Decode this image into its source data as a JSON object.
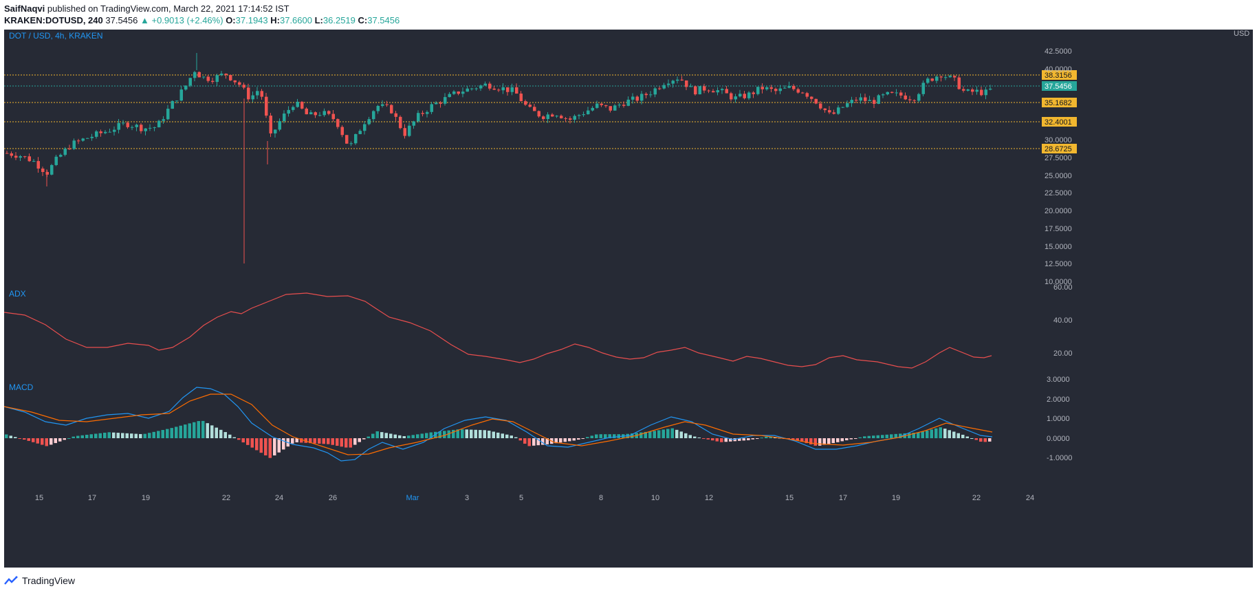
{
  "header": {
    "author": "SaifNaqvi",
    "published_text": "published on TradingView.com, March 22, 2021 17:14:52 IST",
    "symbol": "KRAKEN:DOTUSD, 240",
    "last": "37.5456",
    "change": "▲ +0.9013 (+2.46%)",
    "o_label": "O:",
    "o_value": "37.1943",
    "h_label": "H:",
    "h_value": "37.6600",
    "l_label": "L:",
    "l_value": "36.2519",
    "c_label": "C:",
    "c_value": "37.5456"
  },
  "pane_titles": {
    "main": "DOT / USD, 4h, KRAKEN",
    "adx": "ADX",
    "macd": "MACD"
  },
  "price_axis": {
    "currency": "USD",
    "labels": [
      "42.5000",
      "40.0000",
      "30.0000",
      "27.5000",
      "25.0000",
      "22.5000",
      "20.0000",
      "17.5000",
      "15.0000",
      "12.5000",
      "10.0000"
    ],
    "levels": [
      "38.3156",
      "37.5456",
      "35.1682",
      "32.4001",
      "28.6725"
    ]
  },
  "adx_axis": {
    "labels": [
      "60.00",
      "40.00",
      "20.00"
    ]
  },
  "macd_axis": {
    "labels": [
      "3.0000",
      "2.0000",
      "1.0000",
      "0.0000",
      "-1.0000"
    ]
  },
  "time_axis": {
    "labels": [
      "15",
      "17",
      "19",
      "22",
      "24",
      "26",
      "Mar",
      "3",
      "5",
      "8",
      "10",
      "12",
      "15",
      "17",
      "19",
      "22",
      "24"
    ]
  },
  "colors": {
    "background": "#262a35",
    "up": "#26a69a",
    "down": "#ef5350",
    "level_line": "#f2b72f",
    "adx_line": "#e84e4e",
    "macd_line": "#2196f3",
    "signal_line": "#ff6d00",
    "axis_text": "#b2b5be",
    "title_text": "#2196f3"
  },
  "footer": {
    "brand": "TradingView"
  }
}
